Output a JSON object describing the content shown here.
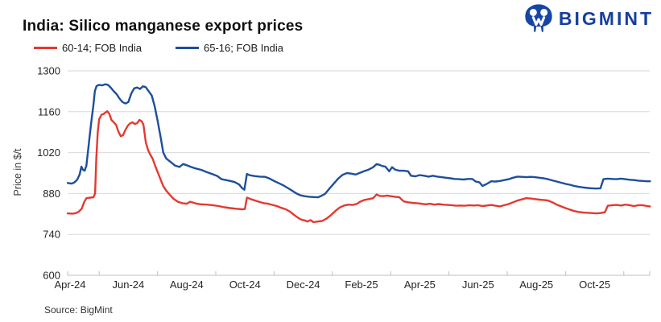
{
  "logo": {
    "text": "BIGMINT",
    "color": "#163f9d",
    "icon": "bigmint-owl-m-icon"
  },
  "source": {
    "text": "Source: BigMint"
  },
  "colors": {
    "series_red": "#e23a31",
    "series_blue": "#1d4f9c",
    "gridline": "#d9d9d9",
    "axis_line": "#bfbfbf",
    "tick_text": "#262626",
    "title_text": "#0f0f0f"
  },
  "chart_data": {
    "type": "line",
    "title": "India: Silico manganese export prices",
    "ylabel": "Price in $/t",
    "xlabel": "",
    "ylim": [
      600,
      1300
    ],
    "y_ticks": [
      1300,
      1160,
      1020,
      880,
      740,
      600
    ],
    "grid": "horizontal",
    "legend_position": "top-left",
    "x_unit": "months since Apr-2024 (0 = Apr-24)",
    "x_tick_labels": [
      "Apr-24",
      "Jun-24",
      "Aug-24",
      "Oct-24",
      "Dec-24",
      "Feb-25",
      "Apr-25",
      "Jun-25",
      "Aug-25",
      "Oct-25"
    ],
    "x_tick_months": [
      0,
      2,
      4,
      6,
      8,
      10,
      12,
      14,
      16,
      18
    ],
    "series": [
      {
        "name": "60-14; FOB India",
        "color": "#e23a31",
        "points": [
          [
            -0.08,
            812
          ],
          [
            0.1,
            811
          ],
          [
            0.2,
            813
          ],
          [
            0.3,
            818
          ],
          [
            0.4,
            828
          ],
          [
            0.48,
            850
          ],
          [
            0.56,
            864
          ],
          [
            0.7,
            866
          ],
          [
            0.8,
            867
          ],
          [
            0.86,
            880
          ],
          [
            0.9,
            1000
          ],
          [
            0.95,
            1090
          ],
          [
            1.0,
            1135
          ],
          [
            1.08,
            1150
          ],
          [
            1.15,
            1152
          ],
          [
            1.22,
            1158
          ],
          [
            1.28,
            1162
          ],
          [
            1.35,
            1152
          ],
          [
            1.42,
            1132
          ],
          [
            1.5,
            1124
          ],
          [
            1.58,
            1115
          ],
          [
            1.66,
            1092
          ],
          [
            1.74,
            1076
          ],
          [
            1.82,
            1080
          ],
          [
            1.9,
            1098
          ],
          [
            1.98,
            1112
          ],
          [
            2.06,
            1120
          ],
          [
            2.14,
            1124
          ],
          [
            2.22,
            1118
          ],
          [
            2.3,
            1121
          ],
          [
            2.38,
            1132
          ],
          [
            2.46,
            1127
          ],
          [
            2.52,
            1115
          ],
          [
            2.6,
            1055
          ],
          [
            2.68,
            1028
          ],
          [
            2.76,
            1012
          ],
          [
            2.84,
            998
          ],
          [
            2.92,
            975
          ],
          [
            3.0,
            955
          ],
          [
            3.1,
            930
          ],
          [
            3.2,
            905
          ],
          [
            3.3,
            890
          ],
          [
            3.42,
            876
          ],
          [
            3.55,
            862
          ],
          [
            3.7,
            852
          ],
          [
            3.85,
            847
          ],
          [
            4.0,
            845
          ],
          [
            4.12,
            852
          ],
          [
            4.22,
            849
          ],
          [
            4.35,
            845
          ],
          [
            4.5,
            843
          ],
          [
            4.7,
            842
          ],
          [
            4.9,
            840
          ],
          [
            5.1,
            837
          ],
          [
            5.3,
            833
          ],
          [
            5.5,
            830
          ],
          [
            5.7,
            828
          ],
          [
            5.9,
            826
          ],
          [
            6.0,
            827
          ],
          [
            6.07,
            866
          ],
          [
            6.2,
            861
          ],
          [
            6.35,
            856
          ],
          [
            6.5,
            851
          ],
          [
            6.65,
            847
          ],
          [
            6.8,
            845
          ],
          [
            6.95,
            841
          ],
          [
            7.1,
            837
          ],
          [
            7.25,
            831
          ],
          [
            7.4,
            826
          ],
          [
            7.55,
            818
          ],
          [
            7.7,
            806
          ],
          [
            7.85,
            795
          ],
          [
            7.95,
            790
          ],
          [
            8.05,
            788
          ],
          [
            8.15,
            784
          ],
          [
            8.25,
            789
          ],
          [
            8.35,
            782
          ],
          [
            8.5,
            784
          ],
          [
            8.65,
            786
          ],
          [
            8.8,
            794
          ],
          [
            8.95,
            806
          ],
          [
            9.1,
            820
          ],
          [
            9.25,
            832
          ],
          [
            9.4,
            839
          ],
          [
            9.55,
            842
          ],
          [
            9.7,
            841
          ],
          [
            9.85,
            845
          ],
          [
            9.95,
            852
          ],
          [
            10.1,
            858
          ],
          [
            10.25,
            861
          ],
          [
            10.4,
            864
          ],
          [
            10.52,
            877
          ],
          [
            10.62,
            872
          ],
          [
            10.75,
            871
          ],
          [
            10.88,
            873
          ],
          [
            11.0,
            871
          ],
          [
            11.15,
            869
          ],
          [
            11.3,
            867
          ],
          [
            11.45,
            853
          ],
          [
            11.6,
            850
          ],
          [
            11.75,
            848
          ],
          [
            11.9,
            847
          ],
          [
            12.05,
            845
          ],
          [
            12.2,
            843
          ],
          [
            12.35,
            845
          ],
          [
            12.5,
            842
          ],
          [
            12.65,
            844
          ],
          [
            12.8,
            842
          ],
          [
            12.95,
            841
          ],
          [
            13.1,
            840
          ],
          [
            13.25,
            838
          ],
          [
            13.4,
            839
          ],
          [
            13.55,
            838
          ],
          [
            13.7,
            840
          ],
          [
            13.85,
            839
          ],
          [
            14.0,
            840
          ],
          [
            14.15,
            837
          ],
          [
            14.3,
            839
          ],
          [
            14.45,
            841
          ],
          [
            14.6,
            838
          ],
          [
            14.75,
            836
          ],
          [
            14.9,
            840
          ],
          [
            15.05,
            844
          ],
          [
            15.2,
            850
          ],
          [
            15.35,
            856
          ],
          [
            15.5,
            860
          ],
          [
            15.65,
            864
          ],
          [
            15.8,
            863
          ],
          [
            15.95,
            861
          ],
          [
            16.1,
            859
          ],
          [
            16.25,
            858
          ],
          [
            16.4,
            856
          ],
          [
            16.55,
            850
          ],
          [
            16.7,
            842
          ],
          [
            16.85,
            836
          ],
          [
            17.0,
            830
          ],
          [
            17.15,
            825
          ],
          [
            17.3,
            820
          ],
          [
            17.45,
            817
          ],
          [
            17.6,
            815
          ],
          [
            17.75,
            814
          ],
          [
            17.9,
            813
          ],
          [
            18.05,
            812
          ],
          [
            18.2,
            813
          ],
          [
            18.35,
            816
          ],
          [
            18.45,
            838
          ],
          [
            18.6,
            840
          ],
          [
            18.75,
            841
          ],
          [
            18.9,
            839
          ],
          [
            19.05,
            842
          ],
          [
            19.2,
            840
          ],
          [
            19.35,
            837
          ],
          [
            19.5,
            840
          ],
          [
            19.65,
            840
          ],
          [
            19.8,
            837
          ],
          [
            19.9,
            836
          ]
        ]
      },
      {
        "name": "65-16; FOB India",
        "color": "#1d4f9c",
        "points": [
          [
            -0.08,
            916
          ],
          [
            0.05,
            914
          ],
          [
            0.15,
            918
          ],
          [
            0.25,
            928
          ],
          [
            0.33,
            945
          ],
          [
            0.39,
            972
          ],
          [
            0.44,
            962
          ],
          [
            0.5,
            958
          ],
          [
            0.56,
            975
          ],
          [
            0.64,
            1047
          ],
          [
            0.72,
            1119
          ],
          [
            0.8,
            1182
          ],
          [
            0.85,
            1230
          ],
          [
            0.91,
            1248
          ],
          [
            1.0,
            1252
          ],
          [
            1.1,
            1250
          ],
          [
            1.2,
            1254
          ],
          [
            1.3,
            1252
          ],
          [
            1.4,
            1242
          ],
          [
            1.5,
            1230
          ],
          [
            1.6,
            1220
          ],
          [
            1.7,
            1205
          ],
          [
            1.8,
            1193
          ],
          [
            1.9,
            1188
          ],
          [
            2.0,
            1193
          ],
          [
            2.1,
            1222
          ],
          [
            2.2,
            1240
          ],
          [
            2.3,
            1243
          ],
          [
            2.4,
            1238
          ],
          [
            2.5,
            1247
          ],
          [
            2.6,
            1244
          ],
          [
            2.7,
            1230
          ],
          [
            2.8,
            1216
          ],
          [
            2.9,
            1180
          ],
          [
            3.0,
            1131
          ],
          [
            3.1,
            1078
          ],
          [
            3.2,
            1020
          ],
          [
            3.3,
            1000
          ],
          [
            3.45,
            988
          ],
          [
            3.6,
            976
          ],
          [
            3.75,
            971
          ],
          [
            3.88,
            981
          ],
          [
            4.0,
            977
          ],
          [
            4.15,
            971
          ],
          [
            4.3,
            966
          ],
          [
            4.5,
            961
          ],
          [
            4.7,
            953
          ],
          [
            4.9,
            946
          ],
          [
            5.05,
            940
          ],
          [
            5.2,
            929
          ],
          [
            5.35,
            926
          ],
          [
            5.5,
            923
          ],
          [
            5.65,
            919
          ],
          [
            5.8,
            911
          ],
          [
            5.9,
            899
          ],
          [
            5.98,
            893
          ],
          [
            6.07,
            947
          ],
          [
            6.15,
            943
          ],
          [
            6.3,
            940
          ],
          [
            6.5,
            938
          ],
          [
            6.7,
            937
          ],
          [
            6.85,
            931
          ],
          [
            7.0,
            923
          ],
          [
            7.15,
            916
          ],
          [
            7.3,
            909
          ],
          [
            7.45,
            900
          ],
          [
            7.6,
            891
          ],
          [
            7.75,
            881
          ],
          [
            7.9,
            874
          ],
          [
            8.05,
            871
          ],
          [
            8.2,
            869
          ],
          [
            8.35,
            868
          ],
          [
            8.5,
            867
          ],
          [
            8.6,
            871
          ],
          [
            8.75,
            879
          ],
          [
            8.9,
            897
          ],
          [
            9.05,
            914
          ],
          [
            9.2,
            931
          ],
          [
            9.35,
            944
          ],
          [
            9.5,
            950
          ],
          [
            9.65,
            948
          ],
          [
            9.8,
            945
          ],
          [
            9.95,
            951
          ],
          [
            10.1,
            957
          ],
          [
            10.25,
            962
          ],
          [
            10.4,
            970
          ],
          [
            10.52,
            981
          ],
          [
            10.62,
            978
          ],
          [
            10.72,
            974
          ],
          [
            10.82,
            972
          ],
          [
            10.95,
            956
          ],
          [
            11.05,
            970
          ],
          [
            11.15,
            962
          ],
          [
            11.3,
            958
          ],
          [
            11.45,
            958
          ],
          [
            11.6,
            956
          ],
          [
            11.7,
            941
          ],
          [
            11.85,
            939
          ],
          [
            12.0,
            943
          ],
          [
            12.15,
            941
          ],
          [
            12.3,
            938
          ],
          [
            12.45,
            941
          ],
          [
            12.6,
            938
          ],
          [
            12.75,
            936
          ],
          [
            12.9,
            934
          ],
          [
            13.05,
            932
          ],
          [
            13.2,
            930
          ],
          [
            13.35,
            929
          ],
          [
            13.5,
            928
          ],
          [
            13.65,
            930
          ],
          [
            13.8,
            930
          ],
          [
            13.92,
            921
          ],
          [
            14.05,
            918
          ],
          [
            14.15,
            906
          ],
          [
            14.3,
            913
          ],
          [
            14.45,
            922
          ],
          [
            14.6,
            921
          ],
          [
            14.75,
            923
          ],
          [
            14.9,
            926
          ],
          [
            15.05,
            929
          ],
          [
            15.2,
            934
          ],
          [
            15.35,
            938
          ],
          [
            15.5,
            937
          ],
          [
            15.65,
            936
          ],
          [
            15.8,
            937
          ],
          [
            15.95,
            936
          ],
          [
            16.1,
            934
          ],
          [
            16.25,
            932
          ],
          [
            16.4,
            929
          ],
          [
            16.55,
            925
          ],
          [
            16.7,
            921
          ],
          [
            16.85,
            917
          ],
          [
            17.0,
            913
          ],
          [
            17.15,
            910
          ],
          [
            17.3,
            906
          ],
          [
            17.45,
            903
          ],
          [
            17.6,
            901
          ],
          [
            17.75,
            899
          ],
          [
            17.9,
            898
          ],
          [
            18.05,
            897
          ],
          [
            18.2,
            898
          ],
          [
            18.3,
            929
          ],
          [
            18.45,
            931
          ],
          [
            18.6,
            930
          ],
          [
            18.75,
            929
          ],
          [
            18.9,
            931
          ],
          [
            19.05,
            929
          ],
          [
            19.2,
            927
          ],
          [
            19.35,
            926
          ],
          [
            19.5,
            924
          ],
          [
            19.65,
            923
          ],
          [
            19.8,
            922
          ],
          [
            19.9,
            922
          ]
        ]
      }
    ]
  }
}
